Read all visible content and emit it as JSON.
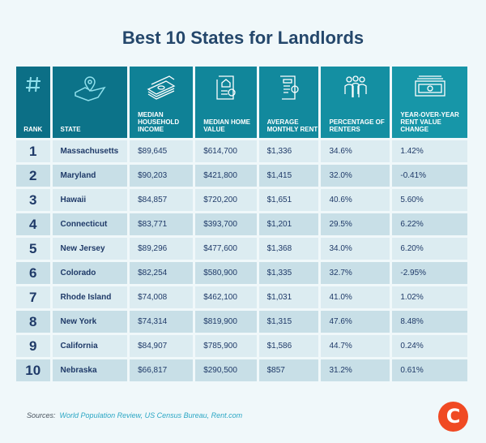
{
  "title": "Best 10 States for Landlords",
  "chart_data": {
    "type": "table",
    "title": "Best 10 States for Landlords",
    "columns": [
      "RANK",
      "STATE",
      "MEDIAN HOUSEHOLD INCOME",
      "MEDIAN HOME VALUE",
      "AVERAGE MONTHLY RENT",
      "PERCENTAGE OF RENTERS",
      "YEAR-OVER-YEAR RENT VALUE CHANGE"
    ],
    "column_icons": [
      "hash-icon",
      "map-pin-icon",
      "money-stack-icon",
      "home-document-icon",
      "rent-receipt-icon",
      "people-icon",
      "banknote-icon"
    ],
    "header_colors": [
      "#0c6f86",
      "#0c7389",
      "#0f8196",
      "#11869a",
      "#12899d",
      "#148fa2",
      "#1796a8"
    ],
    "rows": [
      [
        "1",
        "Massachusetts",
        "$89,645",
        "$614,700",
        "$1,336",
        "34.6%",
        "1.42%"
      ],
      [
        "2",
        "Maryland",
        "$90,203",
        "$421,800",
        "$1,415",
        "32.0%",
        "-0.41%"
      ],
      [
        "3",
        "Hawaii",
        "$84,857",
        "$720,200",
        "$1,651",
        "40.6%",
        "5.60%"
      ],
      [
        "4",
        "Connecticut",
        "$83,771",
        "$393,700",
        "$1,201",
        "29.5%",
        "6.22%"
      ],
      [
        "5",
        "New Jersey",
        "$89,296",
        "$477,600",
        "$1,368",
        "34.0%",
        "6.20%"
      ],
      [
        "6",
        "Colorado",
        "$82,254",
        "$580,900",
        "$1,335",
        "32.7%",
        "-2.95%"
      ],
      [
        "7",
        "Rhode Island",
        "$74,008",
        "$462,100",
        "$1,031",
        "41.0%",
        "1.02%"
      ],
      [
        "8",
        "New York",
        "$74,314",
        "$819,900",
        "$1,315",
        "47.6%",
        "8.48%"
      ],
      [
        "9",
        "California",
        "$84,907",
        "$785,900",
        "$1,586",
        "44.7%",
        "0.24%"
      ],
      [
        "10",
        "Nebraska",
        "$66,817",
        "$290,500",
        "$857",
        "31.2%",
        "0.61%"
      ]
    ]
  },
  "footer": {
    "sources_label": "Sources:",
    "sources": "World Population Review, US Census Bureau, Rent.com",
    "logo": "C"
  }
}
